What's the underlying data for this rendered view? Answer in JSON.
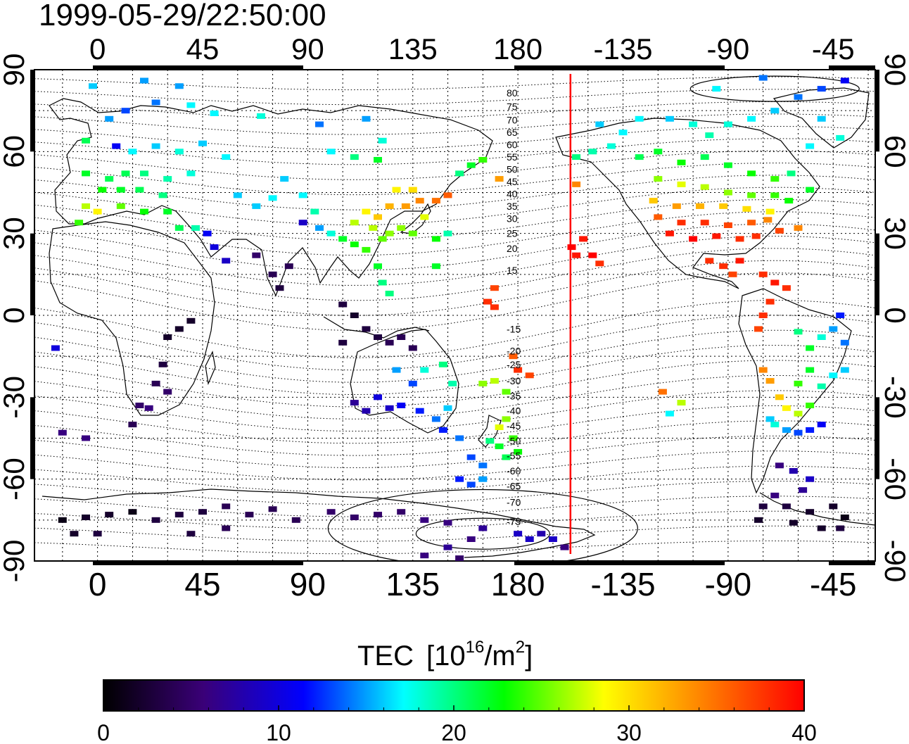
{
  "timestamp": "1999-05-29/22:50:00",
  "top_lon_ticks": [
    0,
    45,
    90,
    135,
    180,
    -135,
    -90,
    -45
  ],
  "bottom_lon_ticks": [
    0,
    45,
    90,
    135,
    180,
    -135,
    -90,
    -45
  ],
  "left_lat_ticks": [
    90,
    60,
    30,
    0,
    -30,
    -60,
    -90
  ],
  "right_lat_ticks": [
    90,
    60,
    30,
    0,
    -30,
    -60,
    -90
  ],
  "magnetic_latitude_labels": [
    {
      "value": "80",
      "lat": 81.5
    },
    {
      "value": "75",
      "lat": 76.5
    },
    {
      "value": "70",
      "lat": 71.5
    },
    {
      "value": "65",
      "lat": 67
    },
    {
      "value": "60",
      "lat": 62.5
    },
    {
      "value": "55",
      "lat": 58
    },
    {
      "value": "50",
      "lat": 53.5
    },
    {
      "value": "45",
      "lat": 49
    },
    {
      "value": "40",
      "lat": 44.5
    },
    {
      "value": "35",
      "lat": 40
    },
    {
      "value": "30",
      "lat": 35.5
    },
    {
      "value": "25",
      "lat": 30
    },
    {
      "value": "20",
      "lat": 24.5
    },
    {
      "value": "15",
      "lat": 16.5
    },
    {
      "value": "-15",
      "lat": -5
    },
    {
      "value": "-20",
      "lat": -13
    },
    {
      "value": "-25",
      "lat": -18
    },
    {
      "value": "-30",
      "lat": -24
    },
    {
      "value": "-35",
      "lat": -29.5
    },
    {
      "value": "-40",
      "lat": -35
    },
    {
      "value": "-45",
      "lat": -40.5
    },
    {
      "value": "-50",
      "lat": -46
    },
    {
      "value": "-55",
      "lat": -51.5
    },
    {
      "value": "-60",
      "lat": -57
    },
    {
      "value": "-65",
      "lat": -62.5
    },
    {
      "value": "-70",
      "lat": -68.5
    },
    {
      "value": "-75",
      "lat": -75.5
    }
  ],
  "terminator_line": {
    "lon": 202.5,
    "color": "#ff0000"
  },
  "colorbar": {
    "title_main": "TEC",
    "title_unit_prefix": "[10",
    "title_unit_exp": "16",
    "title_unit_mid": "/m",
    "title_unit_exp2": "2",
    "title_unit_suffix": "]",
    "min": 0,
    "max": 40,
    "tick_labels": [
      "0",
      "10",
      "20",
      "30",
      "40"
    ],
    "colors": [
      "#000000",
      "#3a0078",
      "#0000ff",
      "#00ffff",
      "#00ff00",
      "#ffff00",
      "#ff8000",
      "#ff0000"
    ]
  },
  "tec_observations": [
    {
      "lon": -2,
      "lat": 84,
      "v": 16
    },
    {
      "lon": 20,
      "lat": 86,
      "v": 15
    },
    {
      "lon": 35,
      "lat": 84,
      "v": 15
    },
    {
      "lon": 40,
      "lat": 77,
      "v": 17
    },
    {
      "lon": 50,
      "lat": 74,
      "v": 17
    },
    {
      "lon": 70,
      "lat": 73,
      "v": 18
    },
    {
      "lon": 25,
      "lat": 78,
      "v": 14
    },
    {
      "lon": 12,
      "lat": 75,
      "v": 13
    },
    {
      "lon": 5,
      "lat": 72,
      "v": 15
    },
    {
      "lon": -5,
      "lat": 64,
      "v": 21
    },
    {
      "lon": 8,
      "lat": 62,
      "v": 11
    },
    {
      "lon": 15,
      "lat": 60,
      "v": 17
    },
    {
      "lon": 25,
      "lat": 62,
      "v": 16
    },
    {
      "lon": 35,
      "lat": 60,
      "v": 18
    },
    {
      "lon": 45,
      "lat": 63,
      "v": 16
    },
    {
      "lon": 55,
      "lat": 58,
      "v": 17
    },
    {
      "lon": -5,
      "lat": 52,
      "v": 22
    },
    {
      "lon": 5,
      "lat": 50,
      "v": 21
    },
    {
      "lon": 12,
      "lat": 52,
      "v": 21
    },
    {
      "lon": 20,
      "lat": 52,
      "v": 20
    },
    {
      "lon": 30,
      "lat": 50,
      "v": 19
    },
    {
      "lon": 40,
      "lat": 52,
      "v": 18
    },
    {
      "lon": 2,
      "lat": 46,
      "v": 23
    },
    {
      "lon": 10,
      "lat": 46,
      "v": 22
    },
    {
      "lon": 18,
      "lat": 46,
      "v": 21
    },
    {
      "lon": 28,
      "lat": 44,
      "v": 20
    },
    {
      "lon": -5,
      "lat": 40,
      "v": 27
    },
    {
      "lon": 0,
      "lat": 38,
      "v": 29
    },
    {
      "lon": 10,
      "lat": 40,
      "v": 25
    },
    {
      "lon": 20,
      "lat": 38,
      "v": 23
    },
    {
      "lon": 30,
      "lat": 38,
      "v": 22
    },
    {
      "lon": 35,
      "lat": 32,
      "v": 21
    },
    {
      "lon": -8,
      "lat": 34,
      "v": 24
    },
    {
      "lon": 60,
      "lat": 44,
      "v": 16
    },
    {
      "lon": 68,
      "lat": 40,
      "v": 16
    },
    {
      "lon": 75,
      "lat": 43,
      "v": 17
    },
    {
      "lon": 80,
      "lat": 50,
      "v": 16
    },
    {
      "lon": 88,
      "lat": 44,
      "v": 17
    },
    {
      "lon": 93,
      "lat": 38,
      "v": 19
    },
    {
      "lon": 100,
      "lat": 60,
      "v": 17
    },
    {
      "lon": 110,
      "lat": 58,
      "v": 20
    },
    {
      "lon": 120,
      "lat": 57,
      "v": 22
    },
    {
      "lon": 122,
      "lat": 64,
      "v": 18
    },
    {
      "lon": 115,
      "lat": 72,
      "v": 15
    },
    {
      "lon": 95,
      "lat": 70,
      "v": 14
    },
    {
      "lon": 47,
      "lat": 30,
      "v": 11
    },
    {
      "lon": 50,
      "lat": 25,
      "v": 10
    },
    {
      "lon": 42,
      "lat": 32,
      "v": 19
    },
    {
      "lon": 55,
      "lat": 20,
      "v": 9
    },
    {
      "lon": 68,
      "lat": 22,
      "v": 5
    },
    {
      "lon": 75,
      "lat": 15,
      "v": 4
    },
    {
      "lon": 78,
      "lat": 10,
      "v": 3
    },
    {
      "lon": 82,
      "lat": 18,
      "v": 4
    },
    {
      "lon": 88,
      "lat": 34,
      "v": 9
    },
    {
      "lon": 95,
      "lat": 32,
      "v": 15
    },
    {
      "lon": 100,
      "lat": 30,
      "v": 18
    },
    {
      "lon": 105,
      "lat": 28,
      "v": 22
    },
    {
      "lon": 110,
      "lat": 34,
      "v": 27
    },
    {
      "lon": 115,
      "lat": 38,
      "v": 29
    },
    {
      "lon": 120,
      "lat": 36,
      "v": 31
    },
    {
      "lon": 125,
      "lat": 40,
      "v": 32
    },
    {
      "lon": 132,
      "lat": 40,
      "v": 33
    },
    {
      "lon": 138,
      "lat": 42,
      "v": 34
    },
    {
      "lon": 145,
      "lat": 42,
      "v": 35
    },
    {
      "lon": 150,
      "lat": 44,
      "v": 36
    },
    {
      "lon": 135,
      "lat": 46,
      "v": 30
    },
    {
      "lon": 128,
      "lat": 46,
      "v": 29
    },
    {
      "lon": 140,
      "lat": 36,
      "v": 28
    },
    {
      "lon": 130,
      "lat": 32,
      "v": 26
    },
    {
      "lon": 122,
      "lat": 28,
      "v": 25
    },
    {
      "lon": 115,
      "lat": 24,
      "v": 24
    },
    {
      "lon": 110,
      "lat": 26,
      "v": 23
    },
    {
      "lon": 118,
      "lat": 32,
      "v": 27
    },
    {
      "lon": 125,
      "lat": 30,
      "v": 26
    },
    {
      "lon": 135,
      "lat": 30,
      "v": 25
    },
    {
      "lon": 145,
      "lat": 28,
      "v": 23
    },
    {
      "lon": 150,
      "lat": 30,
      "v": 19
    },
    {
      "lon": 155,
      "lat": 52,
      "v": 20
    },
    {
      "lon": 160,
      "lat": 55,
      "v": 22
    },
    {
      "lon": 165,
      "lat": 57,
      "v": 24
    },
    {
      "lon": 172,
      "lat": 50,
      "v": 33
    },
    {
      "lon": 120,
      "lat": 18,
      "v": 22
    },
    {
      "lon": 122,
      "lat": 12,
      "v": 20
    },
    {
      "lon": 125,
      "lat": 8,
      "v": 20
    },
    {
      "lon": 145,
      "lat": 18,
      "v": 22
    },
    {
      "lon": 170,
      "lat": 10,
      "v": 37
    },
    {
      "lon": 167,
      "lat": 5,
      "v": 38
    },
    {
      "lon": 170,
      "lat": 3,
      "v": 38
    },
    {
      "lon": 105,
      "lat": 4,
      "v": 3
    },
    {
      "lon": 110,
      "lat": 0,
      "v": 2
    },
    {
      "lon": 115,
      "lat": -5,
      "v": 3
    },
    {
      "lon": 120,
      "lat": -8,
      "v": 3
    },
    {
      "lon": 125,
      "lat": -10,
      "v": 4
    },
    {
      "lon": 130,
      "lat": -8,
      "v": 4
    },
    {
      "lon": 135,
      "lat": -12,
      "v": 4
    },
    {
      "lon": 105,
      "lat": -10,
      "v": 3
    },
    {
      "lon": 40,
      "lat": -2,
      "v": 2
    },
    {
      "lon": 35,
      "lat": -5,
      "v": 2
    },
    {
      "lon": 30,
      "lat": -8,
      "v": 2
    },
    {
      "lon": 28,
      "lat": -18,
      "v": 3
    },
    {
      "lon": 25,
      "lat": -25,
      "v": 4
    },
    {
      "lon": 30,
      "lat": -28,
      "v": 5
    },
    {
      "lon": 18,
      "lat": -33,
      "v": 5
    },
    {
      "lon": 22,
      "lat": -34,
      "v": 6
    },
    {
      "lon": 15,
      "lat": -40,
      "v": 4
    },
    {
      "lon": -18,
      "lat": -12,
      "v": 10
    },
    {
      "lon": -15,
      "lat": -43,
      "v": 6
    },
    {
      "lon": -5,
      "lat": -45,
      "v": 6
    },
    {
      "lon": 110,
      "lat": -32,
      "v": 7
    },
    {
      "lon": 115,
      "lat": -35,
      "v": 8
    },
    {
      "lon": 120,
      "lat": -30,
      "v": 10
    },
    {
      "lon": 125,
      "lat": -34,
      "v": 9
    },
    {
      "lon": 130,
      "lat": -33,
      "v": 11
    },
    {
      "lon": 138,
      "lat": -35,
      "v": 12
    },
    {
      "lon": 145,
      "lat": -38,
      "v": 14
    },
    {
      "lon": 150,
      "lat": -34,
      "v": 16
    },
    {
      "lon": 135,
      "lat": -25,
      "v": 13
    },
    {
      "lon": 140,
      "lat": -20,
      "v": 18
    },
    {
      "lon": 148,
      "lat": -18,
      "v": 20
    },
    {
      "lon": 152,
      "lat": -25,
      "v": 19
    },
    {
      "lon": 128,
      "lat": -20,
      "v": 15
    },
    {
      "lon": 148,
      "lat": -42,
      "v": 12
    },
    {
      "lon": 155,
      "lat": -45,
      "v": 14
    },
    {
      "lon": 160,
      "lat": -52,
      "v": 13
    },
    {
      "lon": 165,
      "lat": -55,
      "v": 14
    },
    {
      "lon": 172,
      "lat": -41,
      "v": 28
    },
    {
      "lon": 175,
      "lat": -38,
      "v": 26
    },
    {
      "lon": 178,
      "lat": -45,
      "v": 24
    },
    {
      "lon": 172,
      "lat": -48,
      "v": 22
    },
    {
      "lon": 168,
      "lat": -46,
      "v": 20
    },
    {
      "lon": 175,
      "lat": -52,
      "v": 21
    },
    {
      "lon": 180,
      "lat": -50,
      "v": 23
    },
    {
      "lon": 165,
      "lat": -25,
      "v": 26
    },
    {
      "lon": 170,
      "lat": -24,
      "v": 27
    },
    {
      "lon": 175,
      "lat": -28,
      "v": 25
    },
    {
      "lon": 180,
      "lat": -20,
      "v": 38
    },
    {
      "lon": 185,
      "lat": -22,
      "v": 37
    },
    {
      "lon": 178,
      "lat": -15,
      "v": 36
    },
    {
      "lon": 155,
      "lat": -60,
      "v": 12
    },
    {
      "lon": 160,
      "lat": -62,
      "v": 13
    },
    {
      "lon": 165,
      "lat": -60,
      "v": 15
    },
    {
      "lon": 180,
      "lat": -80,
      "v": 9
    },
    {
      "lon": 185,
      "lat": -82,
      "v": 9
    },
    {
      "lon": 190,
      "lat": -80,
      "v": 8
    },
    {
      "lon": 195,
      "lat": -82,
      "v": 9
    },
    {
      "lon": 200,
      "lat": -85,
      "v": 6
    },
    {
      "lon": 160,
      "lat": -82,
      "v": 6
    },
    {
      "lon": 150,
      "lat": -85,
      "v": 7
    },
    {
      "lon": 140,
      "lat": -88,
      "v": 6
    },
    {
      "lon": 155,
      "lat": -89,
      "v": 5
    },
    {
      "lon": -15,
      "lat": -75,
      "v": 1
    },
    {
      "lon": -5,
      "lat": -74,
      "v": 2
    },
    {
      "lon": 5,
      "lat": -73,
      "v": 2
    },
    {
      "lon": 15,
      "lat": -72,
      "v": 1
    },
    {
      "lon": -10,
      "lat": -80,
      "v": 2
    },
    {
      "lon": 0,
      "lat": -80,
      "v": 3
    },
    {
      "lon": 25,
      "lat": -75,
      "v": 3
    },
    {
      "lon": 35,
      "lat": -73,
      "v": 3
    },
    {
      "lon": 45,
      "lat": -72,
      "v": 3
    },
    {
      "lon": 55,
      "lat": -70,
      "v": 4
    },
    {
      "lon": 65,
      "lat": -73,
      "v": 4
    },
    {
      "lon": 75,
      "lat": -71,
      "v": 4
    },
    {
      "lon": 85,
      "lat": -75,
      "v": 4
    },
    {
      "lon": 100,
      "lat": -72,
      "v": 5
    },
    {
      "lon": 110,
      "lat": -74,
      "v": 5
    },
    {
      "lon": 120,
      "lat": -73,
      "v": 5
    },
    {
      "lon": 130,
      "lat": -72,
      "v": 5
    },
    {
      "lon": 140,
      "lat": -75,
      "v": 6
    },
    {
      "lon": 150,
      "lat": -76,
      "v": 6
    },
    {
      "lon": 165,
      "lat": -78,
      "v": 7
    },
    {
      "lon": 40,
      "lat": -80,
      "v": 3
    },
    {
      "lon": 55,
      "lat": -78,
      "v": 4
    },
    {
      "lon": 205,
      "lat": 58,
      "v": 20
    },
    {
      "lon": 212,
      "lat": 60,
      "v": 19
    },
    {
      "lon": 220,
      "lat": 62,
      "v": 18
    },
    {
      "lon": 225,
      "lat": 67,
      "v": 17
    },
    {
      "lon": 215,
      "lat": 70,
      "v": 16
    },
    {
      "lon": 232,
      "lat": 72,
      "v": 17
    },
    {
      "lon": 245,
      "lat": 72,
      "v": 16
    },
    {
      "lon": 255,
      "lat": 70,
      "v": 18
    },
    {
      "lon": 262,
      "lat": 66,
      "v": 19
    },
    {
      "lon": 270,
      "lat": 70,
      "v": 18
    },
    {
      "lon": 280,
      "lat": 72,
      "v": 17
    },
    {
      "lon": 290,
      "lat": 75,
      "v": 16
    },
    {
      "lon": 300,
      "lat": 80,
      "v": 14
    },
    {
      "lon": 310,
      "lat": 83,
      "v": 13
    },
    {
      "lon": 320,
      "lat": 86,
      "v": 11
    },
    {
      "lon": 285,
      "lat": 87,
      "v": 14
    },
    {
      "lon": 265,
      "lat": 83,
      "v": 17
    },
    {
      "lon": 310,
      "lat": 72,
      "v": 16
    },
    {
      "lon": 318,
      "lat": 65,
      "v": 18
    },
    {
      "lon": 305,
      "lat": 62,
      "v": 17
    },
    {
      "lon": 232,
      "lat": 58,
      "v": 21
    },
    {
      "lon": 240,
      "lat": 60,
      "v": 22
    },
    {
      "lon": 250,
      "lat": 56,
      "v": 23
    },
    {
      "lon": 260,
      "lat": 58,
      "v": 21
    },
    {
      "lon": 270,
      "lat": 55,
      "v": 22
    },
    {
      "lon": 280,
      "lat": 52,
      "v": 23
    },
    {
      "lon": 290,
      "lat": 50,
      "v": 24
    },
    {
      "lon": 297,
      "lat": 52,
      "v": 20
    },
    {
      "lon": 305,
      "lat": 46,
      "v": 22
    },
    {
      "lon": 240,
      "lat": 50,
      "v": 26
    },
    {
      "lon": 250,
      "lat": 48,
      "v": 28
    },
    {
      "lon": 260,
      "lat": 47,
      "v": 27
    },
    {
      "lon": 270,
      "lat": 45,
      "v": 26
    },
    {
      "lon": 280,
      "lat": 44,
      "v": 25
    },
    {
      "lon": 290,
      "lat": 44,
      "v": 24
    },
    {
      "lon": 296,
      "lat": 42,
      "v": 23
    },
    {
      "lon": 238,
      "lat": 42,
      "v": 31
    },
    {
      "lon": 248,
      "lat": 40,
      "v": 33
    },
    {
      "lon": 258,
      "lat": 40,
      "v": 32
    },
    {
      "lon": 268,
      "lat": 40,
      "v": 31
    },
    {
      "lon": 278,
      "lat": 39,
      "v": 30
    },
    {
      "lon": 288,
      "lat": 38,
      "v": 29
    },
    {
      "lon": 240,
      "lat": 36,
      "v": 36
    },
    {
      "lon": 250,
      "lat": 34,
      "v": 38
    },
    {
      "lon": 260,
      "lat": 34,
      "v": 38
    },
    {
      "lon": 270,
      "lat": 33,
      "v": 37
    },
    {
      "lon": 280,
      "lat": 34,
      "v": 36
    },
    {
      "lon": 287,
      "lat": 35,
      "v": 34
    },
    {
      "lon": 245,
      "lat": 30,
      "v": 39
    },
    {
      "lon": 255,
      "lat": 28,
      "v": 40
    },
    {
      "lon": 265,
      "lat": 29,
      "v": 39
    },
    {
      "lon": 275,
      "lat": 28,
      "v": 38
    },
    {
      "lon": 282,
      "lat": 29,
      "v": 38
    },
    {
      "lon": 292,
      "lat": 31,
      "v": 37
    },
    {
      "lon": 300,
      "lat": 32,
      "v": 34
    },
    {
      "lon": 208,
      "lat": 28,
      "v": 39
    },
    {
      "lon": 212,
      "lat": 22,
      "v": 40
    },
    {
      "lon": 205,
      "lat": 22,
      "v": 39
    },
    {
      "lon": 215,
      "lat": 19,
      "v": 38
    },
    {
      "lon": 203,
      "lat": 25,
      "v": 40
    },
    {
      "lon": 205,
      "lat": 48,
      "v": 34
    },
    {
      "lon": 262,
      "lat": 20,
      "v": 38
    },
    {
      "lon": 268,
      "lat": 18,
      "v": 38
    },
    {
      "lon": 275,
      "lat": 20,
      "v": 39
    },
    {
      "lon": 272,
      "lat": 15,
      "v": 37
    },
    {
      "lon": 285,
      "lat": 15,
      "v": 38
    },
    {
      "lon": 290,
      "lat": 12,
      "v": 39
    },
    {
      "lon": 295,
      "lat": 10,
      "v": 38
    },
    {
      "lon": 288,
      "lat": 5,
      "v": 38
    },
    {
      "lon": 285,
      "lat": 0,
      "v": 38
    },
    {
      "lon": 283,
      "lat": -5,
      "v": 37
    },
    {
      "lon": 285,
      "lat": -20,
      "v": 34
    },
    {
      "lon": 288,
      "lat": -24,
      "v": 33
    },
    {
      "lon": 292,
      "lat": -30,
      "v": 31
    },
    {
      "lon": 295,
      "lat": -34,
      "v": 29
    },
    {
      "lon": 300,
      "lat": -36,
      "v": 27
    },
    {
      "lon": 305,
      "lat": -33,
      "v": 24
    },
    {
      "lon": 290,
      "lat": -40,
      "v": 18
    },
    {
      "lon": 295,
      "lat": -42,
      "v": 15
    },
    {
      "lon": 300,
      "lat": -43,
      "v": 13
    },
    {
      "lon": 305,
      "lat": -42,
      "v": 12
    },
    {
      "lon": 310,
      "lat": -40,
      "v": 11
    },
    {
      "lon": 288,
      "lat": -38,
      "v": 16
    },
    {
      "lon": 300,
      "lat": -6,
      "v": 20
    },
    {
      "lon": 305,
      "lat": -12,
      "v": 22
    },
    {
      "lon": 310,
      "lat": -8,
      "v": 18
    },
    {
      "lon": 315,
      "lat": -5,
      "v": 15
    },
    {
      "lon": 318,
      "lat": 0,
      "v": 12
    },
    {
      "lon": 320,
      "lat": -10,
      "v": 14
    },
    {
      "lon": 315,
      "lat": -22,
      "v": 17
    },
    {
      "lon": 310,
      "lat": -26,
      "v": 19
    },
    {
      "lon": 320,
      "lat": -20,
      "v": 16
    },
    {
      "lon": 305,
      "lat": -20,
      "v": 22
    },
    {
      "lon": 300,
      "lat": -25,
      "v": 24
    },
    {
      "lon": 242,
      "lat": -28,
      "v": 35
    },
    {
      "lon": 250,
      "lat": -32,
      "v": 27
    },
    {
      "lon": 245,
      "lat": -36,
      "v": 17
    },
    {
      "lon": 292,
      "lat": -55,
      "v": 6
    },
    {
      "lon": 298,
      "lat": -57,
      "v": 8
    },
    {
      "lon": 305,
      "lat": -60,
      "v": 9
    },
    {
      "lon": 302,
      "lat": -64,
      "v": 7
    },
    {
      "lon": 290,
      "lat": -66,
      "v": 6
    },
    {
      "lon": 285,
      "lat": -70,
      "v": 3
    },
    {
      "lon": 295,
      "lat": -70,
      "v": 3
    },
    {
      "lon": 305,
      "lat": -72,
      "v": 2
    },
    {
      "lon": 315,
      "lat": -70,
      "v": 2
    },
    {
      "lon": 320,
      "lat": -74,
      "v": 1
    },
    {
      "lon": 283,
      "lat": -75,
      "v": 2
    },
    {
      "lon": 298,
      "lat": -76,
      "v": 2
    },
    {
      "lon": 310,
      "lat": -78,
      "v": 2
    },
    {
      "lon": 318,
      "lat": -78,
      "v": 3
    }
  ]
}
